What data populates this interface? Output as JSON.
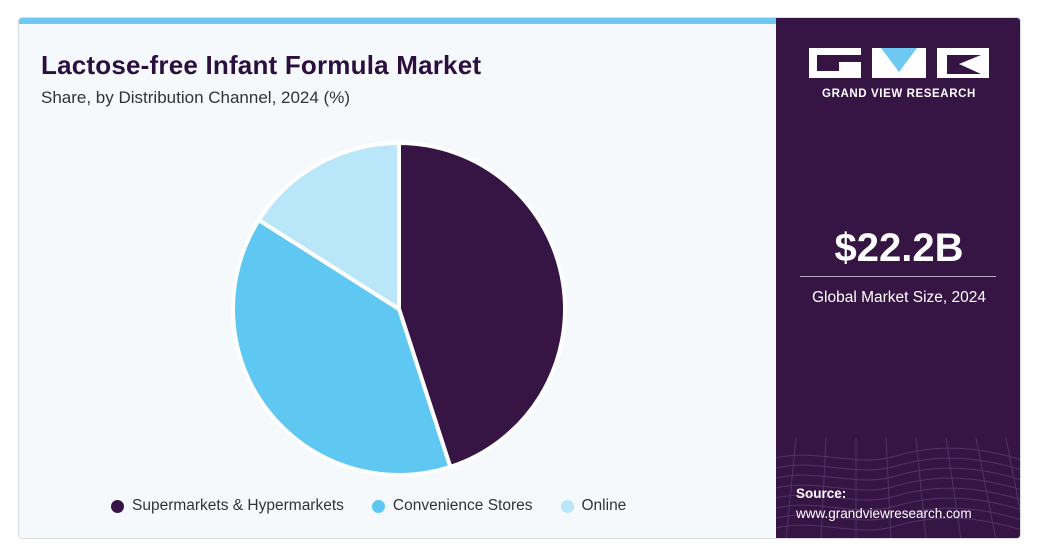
{
  "chart_data": {
    "type": "pie",
    "title": "Lactose-free Infant Formula Market",
    "subtitle": "Share, by Distribution Channel, 2024 (%)",
    "series": [
      {
        "name": "Supermarkets & Hypermarkets",
        "value": 45,
        "color": "#361545"
      },
      {
        "name": "Convenience Stores",
        "value": 39,
        "color": "#5ec8f2"
      },
      {
        "name": "Online",
        "value": 16,
        "color": "#b9e6f8"
      }
    ],
    "legend_position": "bottom"
  },
  "brand": {
    "name": "GRAND VIEW RESEARCH",
    "accent": "#6ec9f2",
    "panel_color": "#361545"
  },
  "metric": {
    "value": "$22.2B",
    "label": "Global Market Size, 2024"
  },
  "source": {
    "label": "Source:",
    "url": "www.grandviewresearch.com"
  }
}
